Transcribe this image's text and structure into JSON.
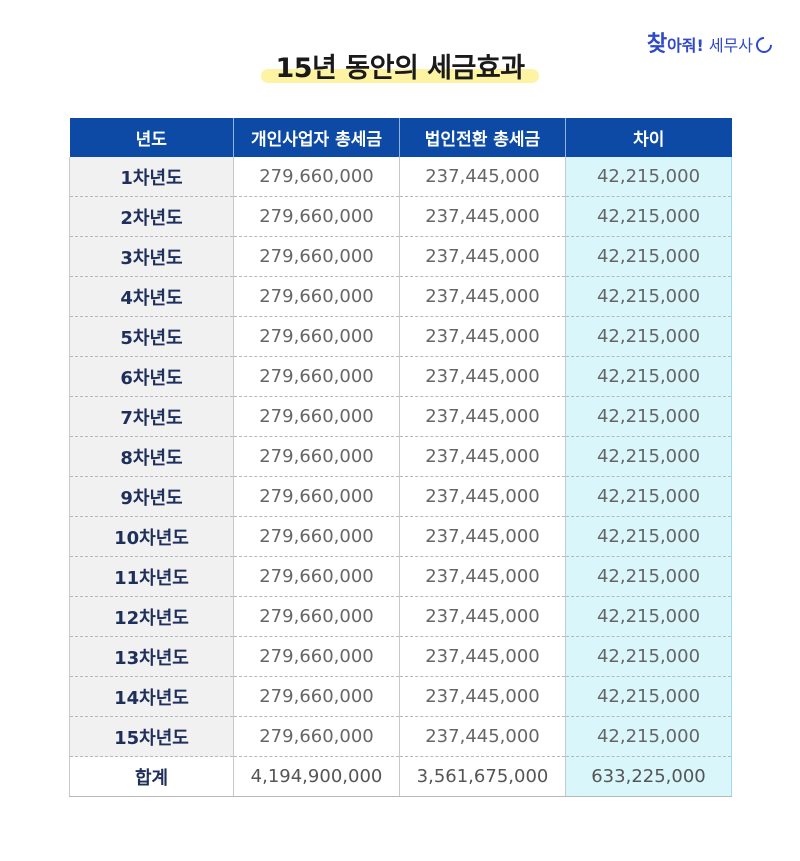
{
  "brand": {
    "part1": "찾",
    "part2": "아줘!",
    "part3": "세무사"
  },
  "title": "15년 동안의 세금효과",
  "table": {
    "headers": [
      "년도",
      "개인사업자 총세금",
      "법인전환 총세금",
      "차이"
    ],
    "rows": [
      {
        "year": "1차년도",
        "individual": "279,660,000",
        "corporate": "237,445,000",
        "difference": "42,215,000"
      },
      {
        "year": "2차년도",
        "individual": "279,660,000",
        "corporate": "237,445,000",
        "difference": "42,215,000"
      },
      {
        "year": "3차년도",
        "individual": "279,660,000",
        "corporate": "237,445,000",
        "difference": "42,215,000"
      },
      {
        "year": "4차년도",
        "individual": "279,660,000",
        "corporate": "237,445,000",
        "difference": "42,215,000"
      },
      {
        "year": "5차년도",
        "individual": "279,660,000",
        "corporate": "237,445,000",
        "difference": "42,215,000"
      },
      {
        "year": "6차년도",
        "individual": "279,660,000",
        "corporate": "237,445,000",
        "difference": "42,215,000"
      },
      {
        "year": "7차년도",
        "individual": "279,660,000",
        "corporate": "237,445,000",
        "difference": "42,215,000"
      },
      {
        "year": "8차년도",
        "individual": "279,660,000",
        "corporate": "237,445,000",
        "difference": "42,215,000"
      },
      {
        "year": "9차년도",
        "individual": "279,660,000",
        "corporate": "237,445,000",
        "difference": "42,215,000"
      },
      {
        "year": "10차년도",
        "individual": "279,660,000",
        "corporate": "237,445,000",
        "difference": "42,215,000"
      },
      {
        "year": "11차년도",
        "individual": "279,660,000",
        "corporate": "237,445,000",
        "difference": "42,215,000"
      },
      {
        "year": "12차년도",
        "individual": "279,660,000",
        "corporate": "237,445,000",
        "difference": "42,215,000"
      },
      {
        "year": "13차년도",
        "individual": "279,660,000",
        "corporate": "237,445,000",
        "difference": "42,215,000"
      },
      {
        "year": "14차년도",
        "individual": "279,660,000",
        "corporate": "237,445,000",
        "difference": "42,215,000"
      },
      {
        "year": "15차년도",
        "individual": "279,660,000",
        "corporate": "237,445,000",
        "difference": "42,215,000"
      }
    ],
    "total": {
      "year": "합계",
      "individual": "4,194,900,000",
      "corporate": "3,561,675,000",
      "difference": "633,225,000"
    }
  },
  "colors": {
    "header_bg": "#0d4aa6",
    "diff_bg": "#d9f6fb",
    "highlight": "#fdf3a3",
    "brand": "#2f4ac8"
  }
}
